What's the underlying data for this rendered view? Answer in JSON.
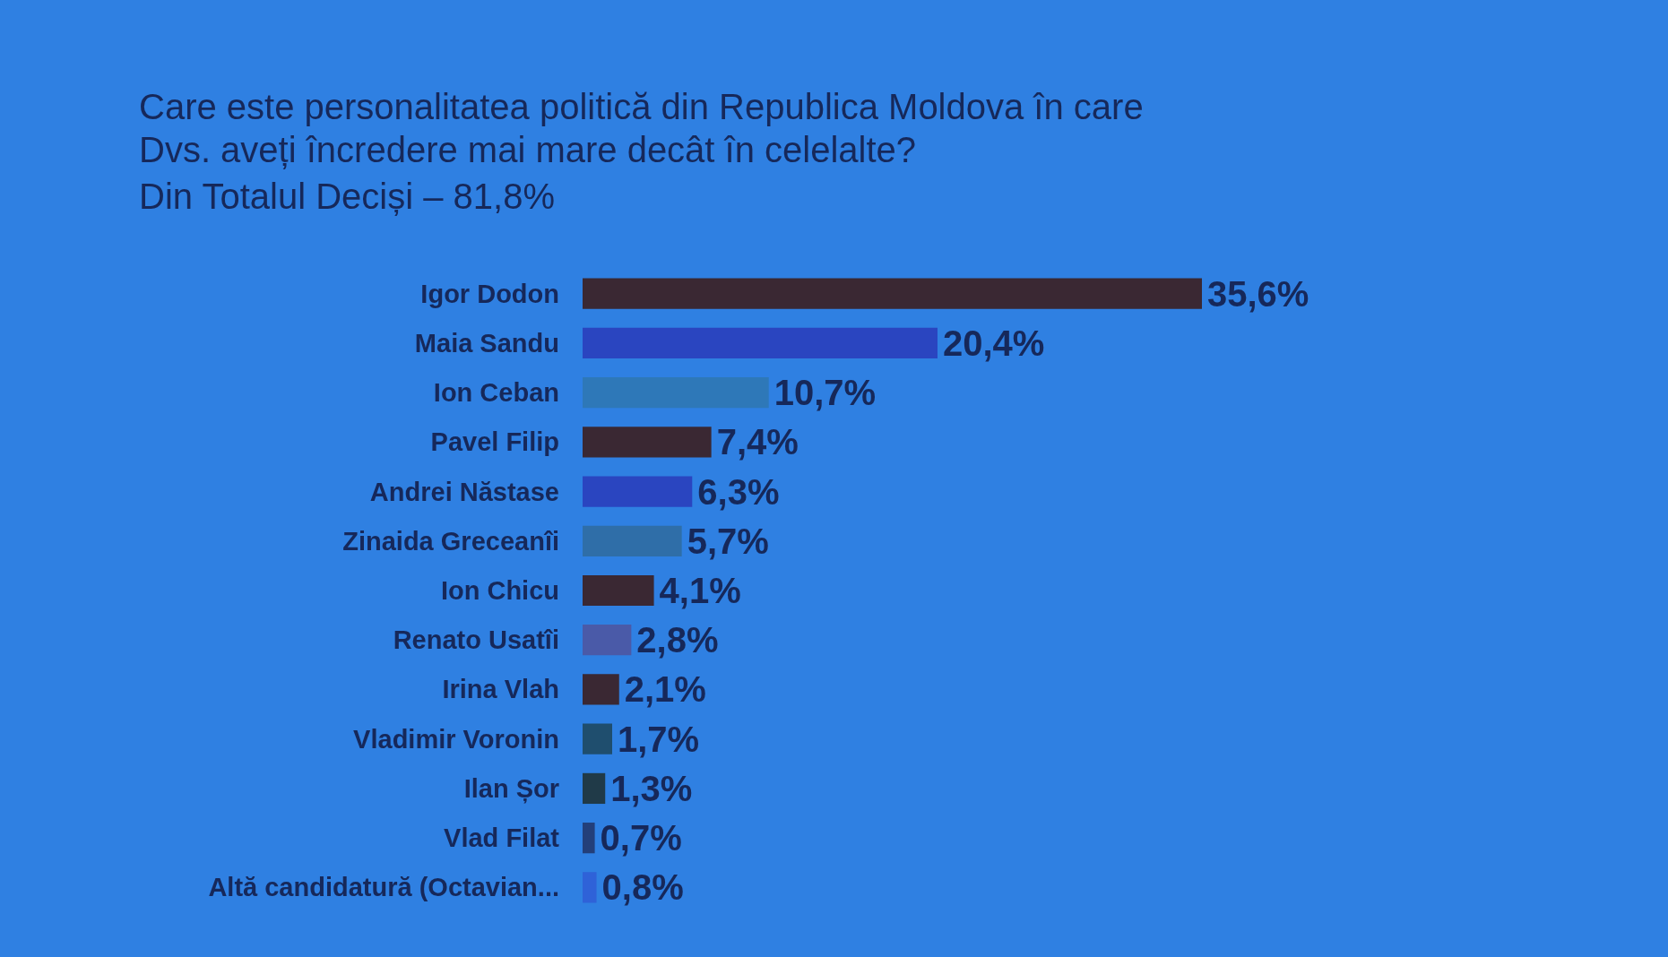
{
  "chart_data": {
    "type": "bar",
    "orientation": "horizontal",
    "title": "Care este personalitatea politică din Republica Moldova în care Dvs. aveți încredere mai mare decât în celelalte?",
    "subtitle": "Din Totalul Deciși – 81,8%",
    "categories": [
      "Igor Dodon",
      "Maia Sandu",
      "Ion Ceban",
      "Pavel Filip",
      "Andrei Năstase",
      "Zinaida Greceanîi",
      "Ion Chicu",
      "Renato Usatîi",
      "Irina Vlah",
      "Vladimir Voronin",
      "Ilan Șor",
      "Vlad Filat",
      "Altă candidatură (Octavian..."
    ],
    "values": [
      35.6,
      20.4,
      10.7,
      7.4,
      6.3,
      5.7,
      4.1,
      2.8,
      2.1,
      1.7,
      1.3,
      0.7,
      0.8
    ],
    "value_labels": [
      "35,6%",
      "20,4%",
      "10,7%",
      "7,4%",
      "6,3%",
      "5,7%",
      "4,1%",
      "2,8%",
      "2,1%",
      "1,7%",
      "1,3%",
      "0,7%",
      "0,8%"
    ],
    "colors": [
      "#3a2833",
      "#2a45c0",
      "#2e78b8",
      "#3a2833",
      "#2a45c0",
      "#2f6ea8",
      "#3a2833",
      "#4a5aa8",
      "#3a2833",
      "#1f4e6e",
      "#203a48",
      "#233f7a",
      "#2f62d8"
    ]
  }
}
